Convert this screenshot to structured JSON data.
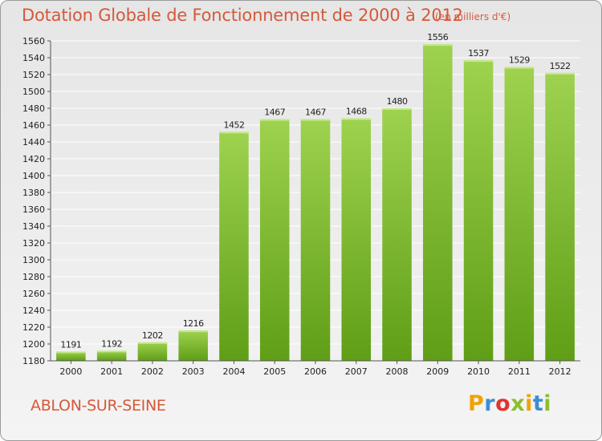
{
  "header": {
    "title": "Dotation Globale de Fonctionnement de 2000 à 2012",
    "unit": "(en milliers d'€)"
  },
  "footer": {
    "commune": "ABLON-SUR-SEINE",
    "logo_letters": [
      "P",
      "r",
      "o",
      "x",
      "i",
      "t",
      "i"
    ],
    "logo_colors": [
      "#f0a300",
      "#3c8ed6",
      "#e2342d",
      "#8bbf2e",
      "#f0a300",
      "#3c8ed6",
      "#8bbf2e"
    ]
  },
  "colors": {
    "bar_top": "#9ed24f",
    "bar_bottom": "#5f9e16",
    "axis": "#555555",
    "grid": "#ffffff",
    "text": "#222222",
    "accent": "#d4593a"
  },
  "chart_data": {
    "type": "bar",
    "categories": [
      "2000",
      "2001",
      "2002",
      "2003",
      "2004",
      "2005",
      "2006",
      "2007",
      "2008",
      "2009",
      "2010",
      "2011",
      "2012"
    ],
    "values": [
      1191,
      1192,
      1202,
      1216,
      1452,
      1467,
      1467,
      1468,
      1480,
      1556,
      1537,
      1529,
      1522
    ],
    "title": "Dotation Globale de Fonctionnement de 2000 à 2012",
    "xlabel": "",
    "ylabel": "",
    "ylim": [
      1180,
      1560
    ],
    "ytick_step": 20,
    "grid": true,
    "legend": "none"
  }
}
